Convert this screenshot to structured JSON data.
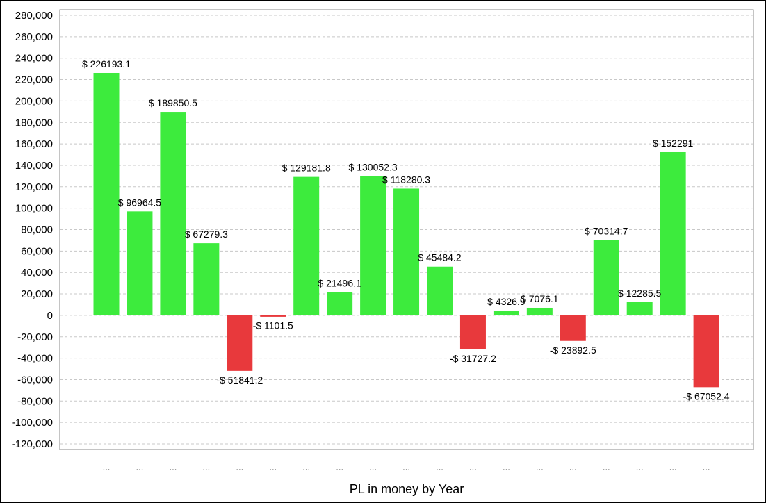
{
  "chart_data": {
    "type": "bar",
    "xlabel": "PL in money by Year",
    "ylabel": "",
    "ylim": [
      -120000,
      280000
    ],
    "y_ticks": [
      280000,
      260000,
      240000,
      220000,
      200000,
      180000,
      160000,
      140000,
      120000,
      100000,
      80000,
      60000,
      40000,
      20000,
      0,
      -20000,
      -40000,
      -60000,
      -80000,
      -100000,
      -120000
    ],
    "y_tick_labels": [
      "280,000",
      "260,000",
      "240,000",
      "220,000",
      "200,000",
      "180,000",
      "160,000",
      "140,000",
      "120,000",
      "100,000",
      "80,000",
      "60,000",
      "40,000",
      "20,000",
      "0",
      "-20,000",
      "-40,000",
      "-60,000",
      "-80,000",
      "-100,000",
      "-120,000"
    ],
    "grid": true,
    "categories": [
      "...",
      "...",
      "...",
      "...",
      "...",
      "...",
      "...",
      "...",
      "...",
      "...",
      "...",
      "...",
      "...",
      "...",
      "...",
      "...",
      "...",
      "...",
      "..."
    ],
    "values": [
      226193.1,
      96964.5,
      189850.5,
      67279.3,
      -51841.2,
      -1101.5,
      129181.8,
      21496.1,
      130052.3,
      118280.3,
      45484.2,
      -31727.2,
      4326.9,
      7076.1,
      -23892.5,
      70314.7,
      12285.5,
      152291,
      -67052.4
    ],
    "data_labels": [
      "$ 226193.1",
      "$ 96964.5",
      "$ 189850.5",
      "$ 67279.3",
      "-$ 51841.2",
      "-$ 1101.5",
      "$ 129181.8",
      "$ 21496.1",
      "$ 130052.3",
      "$ 118280.3",
      "$ 45484.2",
      "-$ 31727.2",
      "$ 4326.9",
      "$ 7076.1",
      "-$ 23892.5",
      "$ 70314.7",
      "$ 12285.5",
      "$ 152291",
      "-$ 67052.4"
    ],
    "colors": {
      "positive": "#3deb3d",
      "negative": "#e8393c"
    }
  }
}
